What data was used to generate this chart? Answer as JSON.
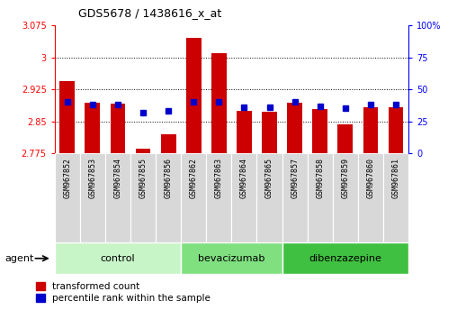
{
  "title": "GDS5678 / 1438616_x_at",
  "samples": [
    "GSM967852",
    "GSM967853",
    "GSM967854",
    "GSM967855",
    "GSM967856",
    "GSM967862",
    "GSM967863",
    "GSM967864",
    "GSM967865",
    "GSM967857",
    "GSM967858",
    "GSM967859",
    "GSM967860",
    "GSM967861"
  ],
  "red_values": [
    2.945,
    2.893,
    2.892,
    2.785,
    2.82,
    3.045,
    3.01,
    2.875,
    2.873,
    2.893,
    2.878,
    2.843,
    2.882,
    2.882
  ],
  "blue_values": [
    40,
    38,
    38,
    32,
    33,
    40,
    40,
    36,
    36,
    40,
    37,
    35,
    38,
    38
  ],
  "groups": [
    {
      "label": "control",
      "start": 0,
      "end": 5,
      "color": "#c8f5c8"
    },
    {
      "label": "bevacizumab",
      "start": 5,
      "end": 9,
      "color": "#80e080"
    },
    {
      "label": "dibenzazepine",
      "start": 9,
      "end": 14,
      "color": "#40c040"
    }
  ],
  "agent_label": "agent",
  "ymin": 2.775,
  "ymax": 3.075,
  "yticks": [
    2.775,
    2.85,
    2.925,
    3.0,
    3.075
  ],
  "ytick_labels": [
    "2.775",
    "2.85",
    "2.925",
    "3",
    "3.075"
  ],
  "y2min": 0,
  "y2max": 100,
  "y2ticks": [
    0,
    25,
    50,
    75,
    100
  ],
  "y2tick_labels": [
    "0",
    "25",
    "50",
    "75",
    "100%"
  ],
  "bar_color": "#cc0000",
  "blue_color": "#0000cc",
  "bg_color": "#ffffff",
  "legend_red": "transformed count",
  "legend_blue": "percentile rank within the sample"
}
